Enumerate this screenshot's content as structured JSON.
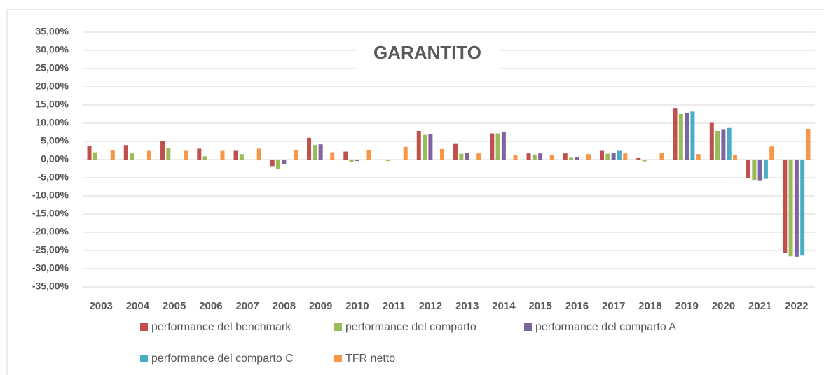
{
  "chart_data": {
    "type": "bar",
    "title": "GARANTITO",
    "categories": [
      "2003",
      "2004",
      "2005",
      "2006",
      "2007",
      "2008",
      "2009",
      "2010",
      "2011",
      "2012",
      "2013",
      "2014",
      "2015",
      "2016",
      "2017",
      "2018",
      "2019",
      "2020",
      "2021",
      "2022"
    ],
    "series": [
      {
        "name": "performance del benchmark",
        "color": "#c0504d",
        "values": [
          3.7,
          4.0,
          5.2,
          3.0,
          2.4,
          -1.8,
          6.0,
          2.2,
          null,
          7.9,
          4.3,
          7.2,
          1.7,
          1.7,
          2.4,
          0.4,
          14.0,
          10.1,
          -5.1,
          -25.6
        ]
      },
      {
        "name": "performance del comparto",
        "color": "#9bbb59",
        "values": [
          2.0,
          1.7,
          3.2,
          0.9,
          1.5,
          -2.5,
          4.0,
          -0.7,
          -0.4,
          6.8,
          1.6,
          7.2,
          1.4,
          0.5,
          1.6,
          -0.5,
          12.5,
          7.9,
          -5.6,
          -26.6
        ]
      },
      {
        "name": "performance del comparto A",
        "color": "#8064a2",
        "values": [
          null,
          null,
          null,
          null,
          null,
          -1.2,
          4.2,
          -0.4,
          null,
          7.0,
          1.9,
          7.5,
          1.7,
          0.7,
          1.9,
          null,
          12.9,
          8.2,
          -5.7,
          -26.7
        ]
      },
      {
        "name": "performance del comparto C",
        "color": "#4bacc6",
        "values": [
          null,
          null,
          null,
          null,
          null,
          null,
          null,
          null,
          null,
          null,
          null,
          null,
          null,
          null,
          2.4,
          null,
          13.2,
          8.7,
          -5.3,
          -26.4
        ]
      },
      {
        "name": "TFR netto",
        "color": "#f79646",
        "values": [
          2.7,
          2.4,
          2.4,
          2.4,
          3.0,
          2.7,
          2.0,
          2.6,
          3.5,
          2.9,
          1.7,
          1.3,
          1.2,
          1.5,
          1.7,
          1.9,
          1.5,
          1.2,
          3.6,
          8.3
        ]
      }
    ],
    "ylim": [
      -35,
      35
    ],
    "yticks": [
      {
        "value": -35,
        "label": "-35,00%"
      },
      {
        "value": -30,
        "label": "-30,00%"
      },
      {
        "value": -25,
        "label": "-25,00%"
      },
      {
        "value": -20,
        "label": "-20,00%"
      },
      {
        "value": -15,
        "label": "-15,00%"
      },
      {
        "value": -10,
        "label": "-10,00%"
      },
      {
        "value": -5,
        "label": "-5,00%"
      },
      {
        "value": 0,
        "label": "0,00%"
      },
      {
        "value": 5,
        "label": "5,00%"
      },
      {
        "value": 10,
        "label": "10,00%"
      },
      {
        "value": 15,
        "label": "15,00%"
      },
      {
        "value": 20,
        "label": "20,00%"
      },
      {
        "value": 25,
        "label": "25,00%"
      },
      {
        "value": 30,
        "label": "30,00%"
      },
      {
        "value": 35,
        "label": "35,00%"
      }
    ],
    "grid": true
  }
}
